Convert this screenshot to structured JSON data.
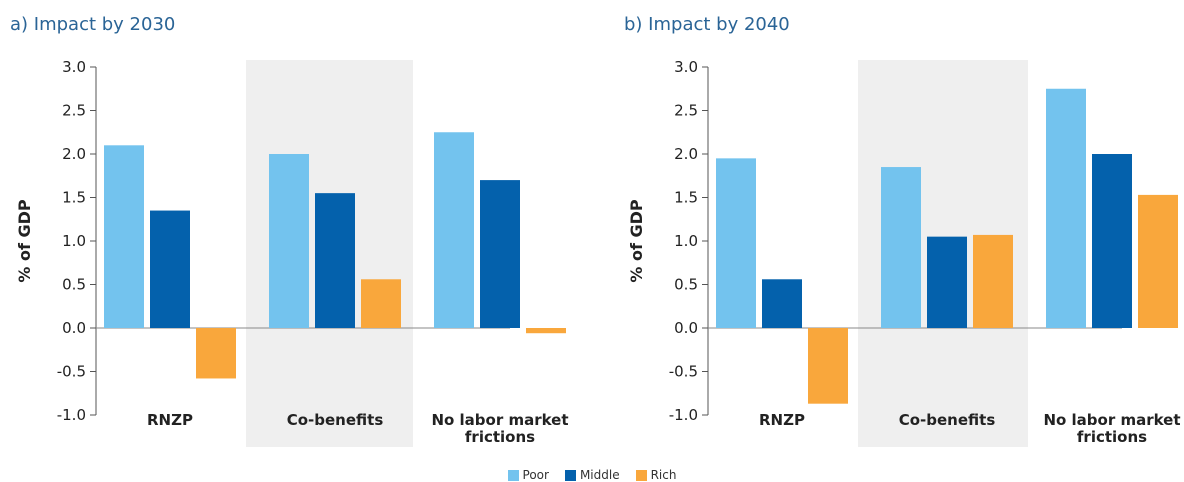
{
  "colors": {
    "poor": "#73c3ee",
    "middle": "#0461ac",
    "rich": "#f9a73c",
    "highlight_band": "#efefef",
    "axis": "#555555",
    "title": "#2a6496"
  },
  "chart_data": [
    {
      "type": "bar",
      "title": "a) Impact by 2030",
      "ylabel": "% of GDP",
      "ylim": [
        -1.0,
        3.0
      ],
      "yticks": [
        "-1.0",
        "-0.5",
        "0.0",
        "0.5",
        "1.0",
        "1.5",
        "2.0",
        "2.5",
        "3.0"
      ],
      "categories": [
        "RNZP",
        "Co-benefits",
        "No labor market frictions"
      ],
      "highlighted_category": "Co-benefits",
      "series": [
        {
          "name": "Poor",
          "values": [
            2.1,
            2.0,
            2.25
          ]
        },
        {
          "name": "Middle",
          "values": [
            1.35,
            1.55,
            1.7
          ]
        },
        {
          "name": "Rich",
          "values": [
            -0.58,
            0.56,
            -0.06
          ]
        }
      ]
    },
    {
      "type": "bar",
      "title": "b) Impact by 2040",
      "ylabel": "% of GDP",
      "ylim": [
        -1.0,
        3.0
      ],
      "yticks": [
        "-1.0",
        "-0.5",
        "0.0",
        "0.5",
        "1.0",
        "1.5",
        "2.0",
        "2.5",
        "3.0"
      ],
      "categories": [
        "RNZP",
        "Co-benefits",
        "No labor market frictions"
      ],
      "highlighted_category": "Co-benefits",
      "series": [
        {
          "name": "Poor",
          "values": [
            1.95,
            1.85,
            2.75
          ]
        },
        {
          "name": "Middle",
          "values": [
            0.56,
            1.05,
            2.0
          ]
        },
        {
          "name": "Rich",
          "values": [
            -0.87,
            1.07,
            1.53
          ]
        }
      ]
    }
  ],
  "legend": [
    {
      "label": "Poor"
    },
    {
      "label": "Middle"
    },
    {
      "label": "Rich"
    }
  ]
}
